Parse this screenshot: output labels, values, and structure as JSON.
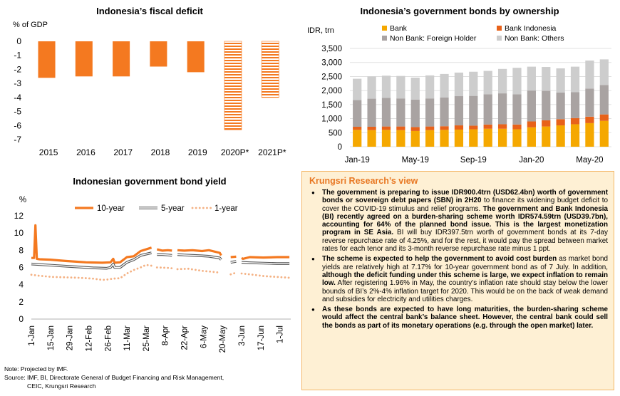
{
  "fiscal": {
    "title": "Indonesia’s fiscal deficit",
    "unit": "% of GDP",
    "chart_data": {
      "type": "bar",
      "categories": [
        "2015",
        "2016",
        "2017",
        "2018",
        "2019",
        "2020P*",
        "2021P*"
      ],
      "values": [
        -2.6,
        -2.5,
        -2.5,
        -1.8,
        -2.2,
        -6.3,
        -4.0
      ],
      "projected": [
        false,
        false,
        false,
        false,
        false,
        true,
        true
      ],
      "ylim": [
        -7,
        0
      ],
      "yticks": [
        0,
        -1,
        -2,
        -3,
        -4,
        -5,
        -6,
        -7
      ],
      "color": "#F47920"
    }
  },
  "bonds": {
    "title": "Indonesia’s government bonds by ownership",
    "unit": "IDR, trn",
    "chart_data": {
      "type": "bar",
      "stacked": true,
      "categories": [
        "Jan-19",
        "Feb-19",
        "Mar-19",
        "Apr-19",
        "May-19",
        "Jun-19",
        "Jul-19",
        "Aug-19",
        "Sep-19",
        "Oct-19",
        "Nov-19",
        "Dec-19",
        "Jan-20",
        "Feb-20",
        "Mar-20",
        "Apr-20",
        "May-20",
        "Jun-20"
      ],
      "x_tick_labels": [
        "Jan-19",
        "May-19",
        "Sep-19",
        "Jan-20",
        "May-20"
      ],
      "x_tick_index": [
        0,
        4,
        8,
        12,
        16
      ],
      "ylim": [
        0,
        3500
      ],
      "yticks": [
        0,
        500,
        1000,
        1500,
        2000,
        2500,
        3000,
        3500
      ],
      "series": [
        {
          "name": "Bank",
          "color": "#F5A800",
          "values": [
            600,
            590,
            600,
            590,
            560,
            590,
            600,
            610,
            620,
            640,
            640,
            620,
            690,
            720,
            760,
            800,
            840,
            920
          ]
        },
        {
          "name": "Bank Indonesia",
          "color": "#E8621A",
          "values": [
            110,
            120,
            120,
            130,
            140,
            130,
            130,
            150,
            130,
            150,
            160,
            170,
            210,
            220,
            220,
            220,
            230,
            230
          ]
        },
        {
          "name": "Non Bank: Foreign Holder",
          "color": "#A9A3A2",
          "values": [
            950,
            1000,
            1020,
            1000,
            980,
            1000,
            1020,
            1040,
            1060,
            1080,
            1100,
            1080,
            1100,
            1050,
            950,
            920,
            1000,
            1050
          ]
        },
        {
          "name": "Non Bank: Others",
          "color": "#CDCDCD",
          "values": [
            760,
            790,
            790,
            800,
            780,
            820,
            840,
            840,
            860,
            830,
            870,
            940,
            850,
            850,
            860,
            910,
            1000,
            910
          ]
        }
      ]
    }
  },
  "yield": {
    "title": "Indonesian government bond yield",
    "unit": "%",
    "chart_data": {
      "type": "line",
      "ylim": [
        0,
        12
      ],
      "yticks": [
        0,
        2,
        4,
        6,
        8,
        10,
        12
      ],
      "x_tick_labels": [
        "1-Jan",
        "15-Jan",
        "29-Jan",
        "12-Feb",
        "26-Feb",
        "11-Mar",
        "25-Mar",
        "8-Apr",
        "22-Apr",
        "6-May",
        "20-May",
        "3-Jun",
        "17-Jun",
        "1-Jul"
      ],
      "x_tick_days": [
        0,
        14,
        28,
        42,
        56,
        70,
        84,
        98,
        112,
        126,
        140,
        154,
        168,
        182
      ],
      "x_range_days": [
        0,
        190
      ],
      "series": [
        {
          "name": "10-year",
          "color": "#F47920",
          "style": "solid",
          "points": [
            [
              0,
              7.1
            ],
            [
              2,
              7.1
            ],
            [
              3,
              10.9
            ],
            [
              4,
              7.0
            ],
            [
              6,
              6.95
            ],
            [
              14,
              6.9
            ],
            [
              25,
              6.75
            ],
            [
              40,
              6.6
            ],
            [
              52,
              6.55
            ],
            [
              58,
              6.6
            ],
            [
              60,
              7.0
            ],
            [
              61,
              6.55
            ],
            [
              65,
              6.6
            ],
            [
              70,
              7.2
            ],
            [
              75,
              7.3
            ],
            [
              80,
              7.9
            ],
            [
              88,
              8.3
            ],
            [
              89,
              null
            ],
            [
              92,
              8.1
            ],
            [
              96,
              7.95
            ],
            [
              100,
              8.0
            ],
            [
              103,
              7.95
            ],
            [
              104,
              null
            ],
            [
              107,
              8.0
            ],
            [
              112,
              7.95
            ],
            [
              118,
              8.0
            ],
            [
              125,
              7.9
            ],
            [
              130,
              8.0
            ],
            [
              138,
              7.7
            ],
            [
              139,
              7.4
            ],
            [
              140,
              null
            ],
            [
              146,
              7.2
            ],
            [
              150,
              7.25
            ],
            [
              151,
              null
            ],
            [
              154,
              7.1
            ],
            [
              155,
              7.0
            ],
            [
              160,
              7.2
            ],
            [
              170,
              7.15
            ],
            [
              180,
              7.2
            ],
            [
              189,
              7.2
            ]
          ]
        },
        {
          "name": "5-year",
          "color": "#444444",
          "style": "double",
          "points": [
            [
              0,
              6.4
            ],
            [
              15,
              6.25
            ],
            [
              30,
              6.1
            ],
            [
              45,
              5.95
            ],
            [
              55,
              5.9
            ],
            [
              58,
              6.0
            ],
            [
              60,
              6.4
            ],
            [
              61,
              6.0
            ],
            [
              65,
              6.0
            ],
            [
              70,
              6.6
            ],
            [
              75,
              6.9
            ],
            [
              80,
              7.4
            ],
            [
              88,
              7.7
            ],
            [
              89,
              null
            ],
            [
              92,
              7.5
            ],
            [
              96,
              7.5
            ],
            [
              100,
              7.45
            ],
            [
              103,
              7.4
            ],
            [
              104,
              null
            ],
            [
              107,
              7.5
            ],
            [
              112,
              7.45
            ],
            [
              118,
              7.4
            ],
            [
              125,
              7.35
            ],
            [
              130,
              7.3
            ],
            [
              138,
              7.1
            ],
            [
              139,
              6.9
            ],
            [
              140,
              null
            ],
            [
              146,
              6.6
            ],
            [
              150,
              6.7
            ],
            [
              151,
              null
            ],
            [
              154,
              6.6
            ],
            [
              160,
              6.55
            ],
            [
              170,
              6.5
            ],
            [
              180,
              6.45
            ],
            [
              189,
              6.45
            ]
          ]
        },
        {
          "name": "1-year",
          "color": "#F4B183",
          "style": "dotted",
          "points": [
            [
              0,
              5.15
            ],
            [
              5,
              5.05
            ],
            [
              15,
              4.9
            ],
            [
              25,
              4.85
            ],
            [
              35,
              4.8
            ],
            [
              45,
              4.7
            ],
            [
              52,
              4.55
            ],
            [
              56,
              4.6
            ],
            [
              60,
              4.7
            ],
            [
              65,
              4.75
            ],
            [
              70,
              5.3
            ],
            [
              75,
              5.7
            ],
            [
              80,
              6.0
            ],
            [
              84,
              6.3
            ],
            [
              88,
              6.2
            ],
            [
              89,
              null
            ],
            [
              92,
              6.0
            ],
            [
              100,
              5.95
            ],
            [
              103,
              5.9
            ],
            [
              104,
              null
            ],
            [
              107,
              5.8
            ],
            [
              115,
              5.85
            ],
            [
              125,
              5.6
            ],
            [
              132,
              5.5
            ],
            [
              138,
              5.4
            ],
            [
              139,
              null
            ],
            [
              146,
              5.2
            ],
            [
              150,
              5.4
            ],
            [
              151,
              null
            ],
            [
              154,
              5.3
            ],
            [
              160,
              5.2
            ],
            [
              170,
              5.0
            ],
            [
              180,
              4.9
            ],
            [
              189,
              4.8
            ]
          ]
        }
      ]
    }
  },
  "view": {
    "title": "Krungsri Research’s view",
    "bullets": [
      [
        {
          "t": "The government is preparing to issue IDR900.4trn (USD62.4bn) worth of government bonds or sovereign debt papers (SBN) in 2H20",
          "b": true
        },
        {
          "t": " to finance its widening budget deficit to cover the COVID-19 stimulus and relief programs. ",
          "b": false
        },
        {
          "t": "The government and Bank Indonesia (BI) recently agreed on a burden-sharing scheme worth IDR574.59trn (USD39.7bn), accounting for 64% of the planned bond issue. This is the largest monetization program in SE Asia.",
          "b": true
        },
        {
          "t": " BI will buy IDR397.5trn worth of government bonds at its 7-day reverse repurchase rate of 4.25%, and for the rest, it would pay the spread between market rates for each tenor and its 3-month reverse repurchase rate minus 1 ppt.",
          "b": false
        }
      ],
      [
        {
          "t": "The scheme is expected to help the government to avoid cost burden",
          "b": true
        },
        {
          "t": " as market bond yields are relatively high at 7.17% for 10-year government bond as of 7 July. In addition, ",
          "b": false
        },
        {
          "t": "although the deficit funding under this scheme is large, we expect inflation to remain low.",
          "b": true
        },
        {
          "t": " After registering 1.96% in May, the country’s inflation rate should stay below the lower bounds of BI’s 2%-4% inflation target for 2020. This would be on the back of weak demand and subsidies for electricity and utilities charges.",
          "b": false
        }
      ],
      [
        {
          "t": "As these bonds are expected to have long maturities, the burden-sharing scheme would affect the central bank’s balance sheet. However, the central bank could sell the bonds as part of its monetary operations (e.g. through the open market) later.",
          "b": true
        }
      ]
    ]
  },
  "notes": {
    "line1": "Note: Projected by IMF.",
    "line2": "Source: IMF, BI, Directorate General of Budget Financing and Risk Management,",
    "line3": "CEIC, Krungsri Research"
  }
}
